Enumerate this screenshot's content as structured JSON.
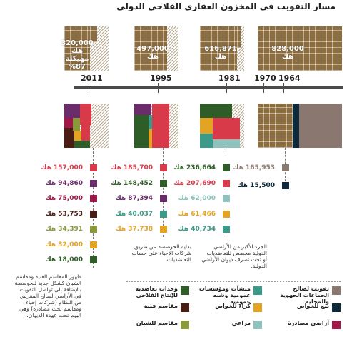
{
  "title": "مسار التفويت في المخزون العقاري الفلاحي الدولي",
  "colors": {
    "land": "#8c6d3f",
    "land_light": "#b89b6a",
    "timeline": "#4a4a4a",
    "private_sale": "#0d2a3a",
    "collective_inheritance": "#8a7770",
    "state_companies": "#3b9a8a",
    "rental_private": "#e3a323",
    "confiscated": "#a0174a",
    "pastures": "#8fc1bd",
    "agri_production": "#2f5d27",
    "technical_lots": "#4a1d12",
    "youth_lots": "#8a9a3a",
    "other": "#d93a4a"
  },
  "top_labels": {
    "s2011": "320,000 هك مهيكلة 87%",
    "s1995": "497,000 هك",
    "s1981": "616,871 هك",
    "s1964": "828,000 هك"
  },
  "years": [
    "2011",
    "1995",
    "1981",
    "1970",
    "1964"
  ],
  "chart_data": {
    "type": "table",
    "title": "مسار التفويت في المخزون العقاري الفلاحي الدولي",
    "unit": "هك",
    "stock_by_year": [
      {
        "year": "1964",
        "value": 828000
      },
      {
        "year": "1981",
        "value": 616871
      },
      {
        "year": "1995",
        "value": 497000
      },
      {
        "year": "2011",
        "value": 320000,
        "note": "مهيكلة 87%"
      }
    ],
    "col_2011": [
      {
        "value": "157,000",
        "color": "#d93a4a"
      },
      {
        "value": "94,860",
        "color": "#6a2c6a"
      },
      {
        "value": "75,000",
        "color": "#a0174a"
      },
      {
        "value": "53,753",
        "color": "#4a1d12"
      },
      {
        "value": "34,391",
        "color": "#8a9a3a"
      },
      {
        "value": "32,000",
        "color": "#e3a323"
      },
      {
        "value": "18,000",
        "color": "#2f5d27"
      }
    ],
    "col_1995": [
      {
        "value": "185,700",
        "color": "#d93a4a"
      },
      {
        "value": "148,452",
        "color": "#2f5d27"
      },
      {
        "value": "87,394",
        "color": "#6a2c6a"
      },
      {
        "value": "40.037",
        "color": "#3b9a8a"
      },
      {
        "value": "37.738",
        "color": "#e3a323"
      }
    ],
    "col_1981": [
      {
        "value": "236,664",
        "color": "#2f5d27"
      },
      {
        "value": "207,690",
        "color": "#d93a4a"
      },
      {
        "value": "62,000",
        "color": "#8fc1bd"
      },
      {
        "value": "61,466",
        "color": "#e3a323"
      },
      {
        "value": "40,734",
        "color": "#3b9a8a"
      }
    ],
    "col_1964": [
      {
        "value": "165,953",
        "color": "#8a7770"
      },
      {
        "value": "15,500",
        "color": "#0d2a3a"
      }
    ]
  },
  "notes": {
    "n2011": "ظهور المقاسم الفنية ومقاسم الشبان كشكل جديد للخوصصة بالإضافة إلى تواصل التفويت في الأراضي لصالح المقربين من النظام (شركات إحياء ومقاسم تحت مصادرة) وهي اليوم تحت عهدة الديوان.",
    "n1995": "بداية الخوصصة عن طريق شركات الإحياء على حساب التعاضديات.",
    "n1981": "الجزء الأكبر من الأراضي الدولية مخصص للتعاضديات أو تحت تصرف ديوان الأراضي الدولية."
  },
  "legend": [
    {
      "label": "تفويت لصالح الجماعات الجهوية والمحلية",
      "color": "#8a7770"
    },
    {
      "label": "منشآت ومؤسسات عمومية وشبه عمومية",
      "color": "#3b9a8a"
    },
    {
      "label": "وحدات تعاضدية للإنتاج الفلاحي",
      "color": "#2f5d27"
    },
    {
      "label": "بيع للخواص",
      "color": "#0d2a3a"
    },
    {
      "label": "كراء للخواص",
      "color": "#e3a323"
    },
    {
      "label": "مقاسم فنية",
      "color": "#4a1d12"
    },
    {
      "label": "أراضي مصادرة",
      "color": "#a0174a"
    },
    {
      "label": "مراعي",
      "color": "#8fc1bd"
    },
    {
      "label": "مقاسم للشبان",
      "color": "#8a9a3a"
    }
  ]
}
